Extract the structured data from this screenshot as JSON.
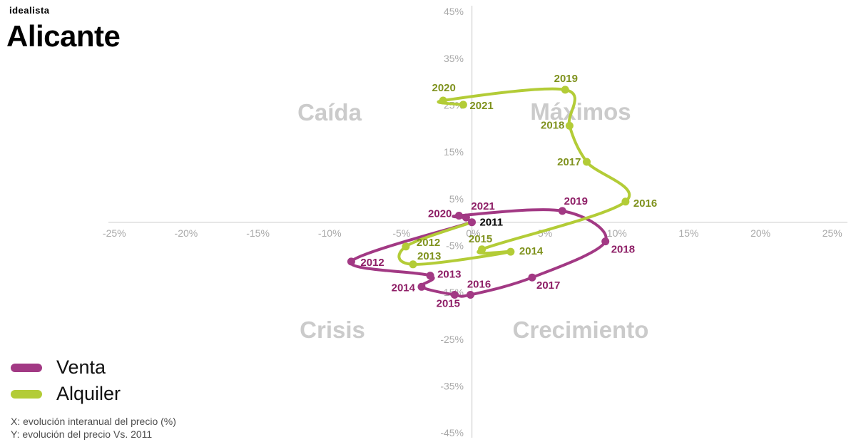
{
  "header": {
    "logo": "idealista",
    "title": "Alicante"
  },
  "quadrants": {
    "top_left": "Caída",
    "top_right": "Máximos",
    "bottom_left": "Crisis",
    "bottom_right": "Crecimiento"
  },
  "legend": [
    {
      "id": "venta",
      "label": "Venta",
      "color": "#a23984"
    },
    {
      "id": "alquiler",
      "label": "Alquiler",
      "color": "#b3cc37"
    }
  ],
  "footnotes": {
    "x": "X: evolución interanual del precio (%)",
    "y": "Y: evolución del precio Vs. 2011"
  },
  "colors": {
    "axis_line": "#dcdcdc",
    "tick_text": "#a9a9a9",
    "watermark": "#cbcbcb"
  },
  "chart_data": {
    "type": "line",
    "title": "Alicante",
    "xlabel": "evolución interanual del precio (%)",
    "ylabel": "evolución del precio Vs. 2011",
    "xlim": [
      -25,
      25
    ],
    "ylim": [
      -45,
      45
    ],
    "grid": false,
    "legend_position": "bottom-left",
    "x_ticks": [
      {
        "v": -25,
        "label": "-25%"
      },
      {
        "v": -20,
        "label": "-20%"
      },
      {
        "v": -15,
        "label": "-15%"
      },
      {
        "v": -10,
        "label": "-10%"
      },
      {
        "v": -5,
        "label": "-5%"
      },
      {
        "v": 0,
        "label": "0%"
      },
      {
        "v": 5,
        "label": "5%"
      },
      {
        "v": 10,
        "label": "10%"
      },
      {
        "v": 15,
        "label": "15%"
      },
      {
        "v": 20,
        "label": "20%"
      },
      {
        "v": 25,
        "label": "25%"
      }
    ],
    "y_ticks": [
      {
        "v": 45,
        "label": "45%"
      },
      {
        "v": 35,
        "label": "35%"
      },
      {
        "v": 25,
        "label": "25%"
      },
      {
        "v": 15,
        "label": "15%"
      },
      {
        "v": 5,
        "label": "5%"
      },
      {
        "v": -5,
        "label": "-5%"
      },
      {
        "v": -15,
        "label": "-15%"
      },
      {
        "v": -25,
        "label": "-25%"
      },
      {
        "v": -35,
        "label": "-35%"
      },
      {
        "v": -45,
        "label": "-45%"
      }
    ],
    "series": [
      {
        "name": "Venta",
        "color": "#a23984",
        "label_color": "#8e1e66",
        "points": [
          {
            "year": "2011",
            "x": 0,
            "y": 0,
            "dot": true,
            "label": {
              "anchor": "start",
              "dx": 11,
              "dy": 5,
              "color": "#000000"
            }
          },
          {
            "year": "2012",
            "x": -8.4,
            "y": -8.4,
            "dot": true,
            "label": {
              "anchor": "start",
              "dx": 13,
              "dy": 6
            }
          },
          {
            "year": "2013",
            "x": -2.9,
            "y": -11.4,
            "dot": true,
            "label": {
              "anchor": "start",
              "dx": 10,
              "dy": 3
            }
          },
          {
            "year": "2014",
            "x": -3.5,
            "y": -13.8,
            "dot": true,
            "label": {
              "anchor": "end",
              "dx": -9,
              "dy": 6
            }
          },
          {
            "year": "2015",
            "x": -1.2,
            "y": -15.5,
            "dot": true,
            "label": {
              "anchor": "middle",
              "dx": -9,
              "dy": 17
            }
          },
          {
            "year": "2016",
            "x": -0.1,
            "y": -15.5,
            "dot": true,
            "label": {
              "anchor": "middle",
              "dx": 12,
              "dy": -10
            }
          },
          {
            "year": "2017",
            "x": 4.2,
            "y": -11.8,
            "dot": true,
            "label": {
              "anchor": "start",
              "dx": 6,
              "dy": 16
            }
          },
          {
            "year": "2018",
            "x": 9.3,
            "y": -4.1,
            "dot": true,
            "label": {
              "anchor": "start",
              "dx": 8,
              "dy": 16
            }
          },
          {
            "year": "2019",
            "x": 6.3,
            "y": 2.4,
            "dot": true,
            "label": {
              "anchor": "middle",
              "dx": 19,
              "dy": -9
            }
          },
          {
            "year": "2020",
            "x": -0.9,
            "y": 1.4,
            "dot": true,
            "label": {
              "anchor": "end",
              "dx": -10,
              "dy": 2
            }
          },
          {
            "year": "2021",
            "x": -0.4,
            "y": 1.0,
            "dot": true,
            "label": {
              "anchor": "start",
              "dx": 7,
              "dy": -11
            }
          }
        ]
      },
      {
        "name": "Alquiler",
        "color": "#b3cc37",
        "label_color": "#7f921e",
        "points": [
          {
            "year": "2011",
            "x": 0,
            "y": 0,
            "dot": false,
            "label": null
          },
          {
            "year": "2012",
            "x": -4.6,
            "y": -5.2,
            "dot": true,
            "label": {
              "anchor": "start",
              "dx": 15,
              "dy": -1
            }
          },
          {
            "year": "2013",
            "x": -4.1,
            "y": -9.0,
            "dot": true,
            "label": {
              "anchor": "start",
              "dx": 6,
              "dy": -7
            }
          },
          {
            "year": "2014",
            "x": 2.7,
            "y": -6.3,
            "dot": true,
            "label": {
              "anchor": "start",
              "dx": 12,
              "dy": 4
            }
          },
          {
            "year": "2015",
            "x": 0.7,
            "y": -5.8,
            "dot": true,
            "label": {
              "anchor": "middle",
              "dx": -2,
              "dy": -10
            }
          },
          {
            "year": "2016",
            "x": 10.7,
            "y": 4.4,
            "dot": true,
            "label": {
              "anchor": "start",
              "dx": 11,
              "dy": 7
            }
          },
          {
            "year": "2017",
            "x": 8.0,
            "y": 12.9,
            "dot": true,
            "label": {
              "anchor": "end",
              "dx": -8,
              "dy": 5
            }
          },
          {
            "year": "2018",
            "x": 6.8,
            "y": 20.6,
            "dot": true,
            "label": {
              "anchor": "end",
              "dx": -7,
              "dy": 4
            }
          },
          {
            "year": "2019",
            "x": 6.5,
            "y": 28.3,
            "dot": true,
            "label": {
              "anchor": "middle",
              "dx": 1,
              "dy": -11
            }
          },
          {
            "year": "2020",
            "x": -2.0,
            "y": 26.0,
            "dot": true,
            "label": {
              "anchor": "middle",
              "dx": 1,
              "dy": -13
            }
          },
          {
            "year": "2021",
            "x": -0.6,
            "y": 25.1,
            "dot": true,
            "label": {
              "anchor": "start",
              "dx": 9,
              "dy": 6
            }
          }
        ]
      }
    ]
  }
}
